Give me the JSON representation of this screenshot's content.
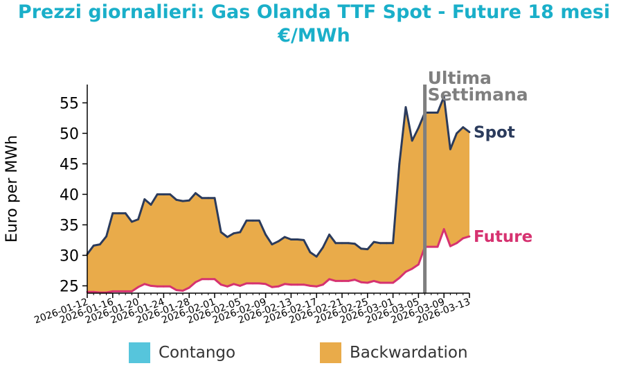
{
  "title": {
    "line1": "Prezzi giornalieri: Gas Olanda TTF Spot - Future 18 mesi",
    "line2": "€/MWh"
  },
  "chart_data": {
    "type": "area",
    "ylabel": "Euro per MWh",
    "xlabel": "",
    "ylim": [
      23.8,
      58
    ],
    "yticks": [
      25,
      30,
      35,
      40,
      45,
      50,
      55
    ],
    "x_tick_labels": [
      "2026-01-12",
      "2026-01-16",
      "2026-01-20",
      "2026-01-24",
      "2026-01-28",
      "2026-02-01",
      "2026-02-05",
      "2026-02-09",
      "2026-02-13",
      "2026-02-17",
      "2026-02-21",
      "2026-02-25",
      "2026-03-01",
      "2026-03-05",
      "2026-03-09",
      "2026-03-13"
    ],
    "grid": false,
    "x": [
      "2026-01-12",
      "2026-01-13",
      "2026-01-14",
      "2026-01-15",
      "2026-01-16",
      "2026-01-17",
      "2026-01-18",
      "2026-01-19",
      "2026-01-20",
      "2026-01-21",
      "2026-01-22",
      "2026-01-23",
      "2026-01-24",
      "2026-01-25",
      "2026-01-26",
      "2026-01-27",
      "2026-01-28",
      "2026-01-29",
      "2026-01-30",
      "2026-01-31",
      "2026-02-01",
      "2026-02-02",
      "2026-02-03",
      "2026-02-04",
      "2026-02-05",
      "2026-02-06",
      "2026-02-07",
      "2026-02-08",
      "2026-02-09",
      "2026-02-10",
      "2026-02-11",
      "2026-02-12",
      "2026-02-13",
      "2026-02-14",
      "2026-02-15",
      "2026-02-16",
      "2026-02-17",
      "2026-02-18",
      "2026-02-19",
      "2026-02-20",
      "2026-02-21",
      "2026-02-22",
      "2026-02-23",
      "2026-02-24",
      "2026-02-25",
      "2026-02-26",
      "2026-02-27",
      "2026-02-28",
      "2026-03-01",
      "2026-03-02",
      "2026-03-03",
      "2026-03-04",
      "2026-03-05",
      "2026-03-06",
      "2026-03-07",
      "2026-03-08",
      "2026-03-09",
      "2026-03-10",
      "2026-03-11",
      "2026-03-12",
      "2026-03-13"
    ],
    "series": [
      {
        "name": "Spot",
        "color": "#2b3b5c",
        "values": [
          30.2,
          31.6,
          31.8,
          33.1,
          36.9,
          36.9,
          36.9,
          35.5,
          35.9,
          39.2,
          38.3,
          40.0,
          40.0,
          40.0,
          39.1,
          38.9,
          39.0,
          40.2,
          39.4,
          39.4,
          39.4,
          33.8,
          33.0,
          33.6,
          33.8,
          35.7,
          35.7,
          35.7,
          33.4,
          31.8,
          32.3,
          33.0,
          32.6,
          32.6,
          32.5,
          30.5,
          29.8,
          31.3,
          33.4,
          32.0,
          32.0,
          32.0,
          31.9,
          31.1,
          31.0,
          32.2,
          32.0,
          32.0,
          32.0,
          45.0,
          54.3,
          48.8,
          50.9,
          53.4,
          53.4,
          53.4,
          56.0,
          47.4,
          50.0,
          51.0,
          50.2
        ]
      },
      {
        "name": "Future",
        "color": "#d63270",
        "values": [
          24.0,
          24.0,
          23.9,
          23.9,
          24.1,
          24.1,
          24.1,
          24.1,
          24.8,
          25.3,
          25.0,
          24.9,
          24.9,
          24.9,
          24.3,
          24.2,
          24.7,
          25.6,
          26.1,
          26.1,
          26.1,
          25.2,
          24.9,
          25.3,
          25.0,
          25.4,
          25.4,
          25.4,
          25.3,
          24.8,
          24.9,
          25.3,
          25.2,
          25.2,
          25.2,
          25.0,
          24.9,
          25.2,
          26.1,
          25.8,
          25.8,
          25.8,
          26.0,
          25.6,
          25.5,
          25.8,
          25.5,
          25.5,
          25.5,
          26.3,
          27.3,
          27.8,
          28.5,
          31.4,
          31.4,
          31.4,
          34.3,
          31.5,
          32.0,
          32.8,
          33.1
        ]
      }
    ],
    "fill_color": "#e9ab4a",
    "annotation": {
      "text_line1": "Ultima",
      "text_line2": "Settimana",
      "x": "2026-03-06",
      "color": "#7f7f7f"
    },
    "legend": {
      "placement": "bottom",
      "items": [
        {
          "label": "Contango",
          "color": "#56c5dc"
        },
        {
          "label": "Backwardation",
          "color": "#e9ab4a"
        }
      ]
    }
  }
}
